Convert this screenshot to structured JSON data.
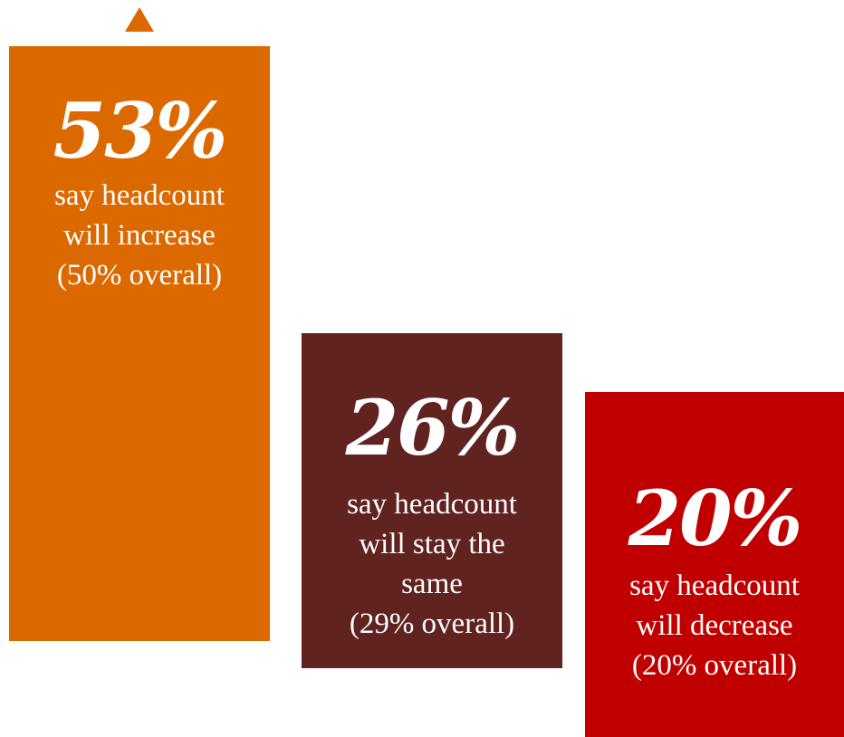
{
  "chart_data": {
    "type": "bar",
    "categories": [
      "increase",
      "stay the same",
      "decrease"
    ],
    "values": [
      53,
      26,
      20
    ],
    "overall_values": [
      50,
      29,
      20
    ],
    "unit": "%",
    "colors": [
      "#dc6900",
      "#602320",
      "#c00000"
    ],
    "labels": [
      {
        "value_text": "53%",
        "lines": [
          "say headcount",
          "will increase",
          "(50% overall)"
        ]
      },
      {
        "value_text": "26%",
        "lines": [
          "say headcount",
          "will stay the",
          "same",
          "(29% overall)"
        ]
      },
      {
        "value_text": "20%",
        "lines": [
          "say headcount",
          "will decrease",
          "(20% overall)"
        ]
      }
    ],
    "indicator": "up-arrow-icon"
  }
}
